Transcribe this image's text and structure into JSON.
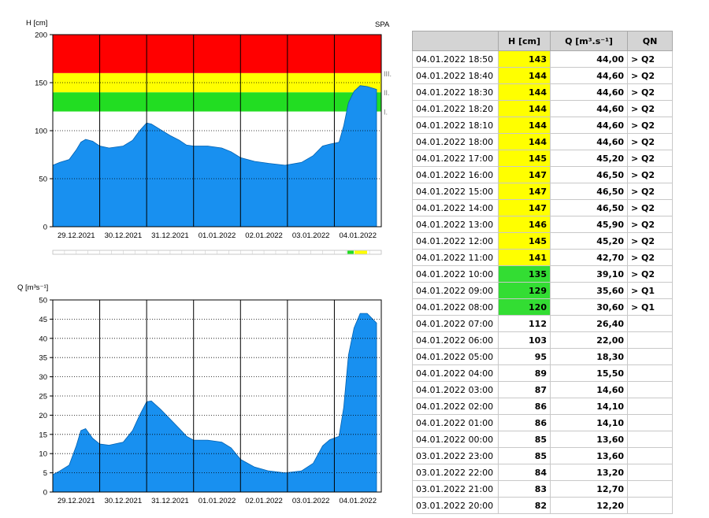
{
  "colors": {
    "fill": "#1890f0",
    "red": "#ff0000",
    "yellow": "#ffff00",
    "green": "#22dd22",
    "grid": "#000000"
  },
  "chart_data": [
    {
      "type": "area",
      "ylabel": "H [cm]",
      "corner_label": "SPA",
      "ylim": [
        0,
        200
      ],
      "yticks": [
        0,
        50,
        100,
        150,
        200
      ],
      "x_categories": [
        "29.12.2021",
        "30.12.2021",
        "31.12.2021",
        "01.01.2022",
        "02.01.2022",
        "03.01.2022",
        "04.01.2022"
      ],
      "flood_bands": [
        {
          "label": "I.",
          "from": 120,
          "to": 140,
          "color": "green"
        },
        {
          "label": "II.",
          "from": 140,
          "to": 160,
          "color": "yellow"
        },
        {
          "label": "III.",
          "from": 160,
          "to": 200,
          "color": "red"
        }
      ],
      "band_labels": [
        "I.",
        "II.",
        "III."
      ],
      "grid": "dotted horizontal, solid vertical at day boundaries",
      "series": [
        {
          "x": [
            0,
            0.15,
            0.35,
            0.5,
            0.6,
            0.7,
            0.85,
            1.0,
            1.2,
            1.5,
            1.7,
            1.85,
            2.0,
            2.1,
            2.3,
            2.5,
            2.7,
            2.85,
            3.0,
            3.3,
            3.6,
            3.8,
            4.0,
            4.3,
            4.6,
            4.95,
            5.3,
            5.55,
            5.75,
            5.9,
            6.1,
            6.2,
            6.3,
            6.42,
            6.55,
            6.7,
            6.9
          ],
          "y": [
            64,
            67,
            70,
            80,
            88,
            91,
            89,
            84,
            82,
            84,
            90,
            100,
            108,
            107,
            101,
            95,
            90,
            85,
            84,
            84,
            82,
            78,
            72,
            68,
            66,
            64,
            67,
            74,
            84,
            86,
            88,
            105,
            129,
            141,
            147,
            146,
            143
          ]
        }
      ]
    },
    {
      "type": "area",
      "ylabel": "Q [m³s⁻¹]",
      "ylim": [
        0,
        50
      ],
      "yticks": [
        0,
        5,
        10,
        15,
        20,
        25,
        30,
        35,
        40,
        45,
        50
      ],
      "x_categories": [
        "29.12.2021",
        "30.12.2021",
        "31.12.2021",
        "01.01.2022",
        "02.01.2022",
        "03.01.2022",
        "04.01.2022"
      ],
      "grid": "dotted horizontal, solid vertical at day boundaries",
      "series": [
        {
          "x": [
            0,
            0.15,
            0.35,
            0.5,
            0.6,
            0.7,
            0.85,
            1.0,
            1.2,
            1.5,
            1.7,
            1.85,
            2.0,
            2.1,
            2.3,
            2.5,
            2.7,
            2.85,
            3.0,
            3.3,
            3.6,
            3.8,
            4.0,
            4.3,
            4.6,
            4.95,
            5.3,
            5.55,
            5.75,
            5.9,
            6.1,
            6.2,
            6.3,
            6.42,
            6.55,
            6.7,
            6.9
          ],
          "y": [
            4.5,
            5.5,
            7,
            12,
            16,
            16.5,
            14,
            12.5,
            12.2,
            13,
            16,
            20,
            23.5,
            23.7,
            21.5,
            19,
            16.5,
            14.5,
            13.5,
            13.5,
            13,
            11.5,
            8.5,
            6.5,
            5.5,
            5,
            5.5,
            7.5,
            12,
            13.6,
            14.5,
            22,
            35.6,
            42.7,
            46.5,
            46.5,
            44
          ]
        }
      ]
    }
  ],
  "table": {
    "headers": [
      "",
      "H [cm]",
      "Q [m³.s⁻¹]",
      "QN"
    ],
    "rows": [
      {
        "time": "04.01.2022 18:50",
        "h": "143",
        "q": "44,00",
        "qn": "> Q2",
        "level": "yellow"
      },
      {
        "time": "04.01.2022 18:40",
        "h": "144",
        "q": "44,60",
        "qn": "> Q2",
        "level": "yellow"
      },
      {
        "time": "04.01.2022 18:30",
        "h": "144",
        "q": "44,60",
        "qn": "> Q2",
        "level": "yellow"
      },
      {
        "time": "04.01.2022 18:20",
        "h": "144",
        "q": "44,60",
        "qn": "> Q2",
        "level": "yellow"
      },
      {
        "time": "04.01.2022 18:10",
        "h": "144",
        "q": "44,60",
        "qn": "> Q2",
        "level": "yellow"
      },
      {
        "time": "04.01.2022 18:00",
        "h": "144",
        "q": "44,60",
        "qn": "> Q2",
        "level": "yellow"
      },
      {
        "time": "04.01.2022 17:00",
        "h": "145",
        "q": "45,20",
        "qn": "> Q2",
        "level": "yellow"
      },
      {
        "time": "04.01.2022 16:00",
        "h": "147",
        "q": "46,50",
        "qn": "> Q2",
        "level": "yellow"
      },
      {
        "time": "04.01.2022 15:00",
        "h": "147",
        "q": "46,50",
        "qn": "> Q2",
        "level": "yellow"
      },
      {
        "time": "04.01.2022 14:00",
        "h": "147",
        "q": "46,50",
        "qn": "> Q2",
        "level": "yellow"
      },
      {
        "time": "04.01.2022 13:00",
        "h": "146",
        "q": "45,90",
        "qn": "> Q2",
        "level": "yellow"
      },
      {
        "time": "04.01.2022 12:00",
        "h": "145",
        "q": "45,20",
        "qn": "> Q2",
        "level": "yellow"
      },
      {
        "time": "04.01.2022 11:00",
        "h": "141",
        "q": "42,70",
        "qn": "> Q2",
        "level": "yellow"
      },
      {
        "time": "04.01.2022 10:00",
        "h": "135",
        "q": "39,10",
        "qn": "> Q2",
        "level": "green"
      },
      {
        "time": "04.01.2022 09:00",
        "h": "129",
        "q": "35,60",
        "qn": "> Q1",
        "level": "green"
      },
      {
        "time": "04.01.2022 08:00",
        "h": "120",
        "q": "30,60",
        "qn": "> Q1",
        "level": "green"
      },
      {
        "time": "04.01.2022 07:00",
        "h": "112",
        "q": "26,40",
        "qn": "",
        "level": "none"
      },
      {
        "time": "04.01.2022 06:00",
        "h": "103",
        "q": "22,00",
        "qn": "",
        "level": "none"
      },
      {
        "time": "04.01.2022 05:00",
        "h": "95",
        "q": "18,30",
        "qn": "",
        "level": "none"
      },
      {
        "time": "04.01.2022 04:00",
        "h": "89",
        "q": "15,50",
        "qn": "",
        "level": "none"
      },
      {
        "time": "04.01.2022 03:00",
        "h": "87",
        "q": "14,60",
        "qn": "",
        "level": "none"
      },
      {
        "time": "04.01.2022 02:00",
        "h": "86",
        "q": "14,10",
        "qn": "",
        "level": "none"
      },
      {
        "time": "04.01.2022 01:00",
        "h": "86",
        "q": "14,10",
        "qn": "",
        "level": "none"
      },
      {
        "time": "04.01.2022 00:00",
        "h": "85",
        "q": "13,60",
        "qn": "",
        "level": "none"
      },
      {
        "time": "03.01.2022 23:00",
        "h": "85",
        "q": "13,60",
        "qn": "",
        "level": "none"
      },
      {
        "time": "03.01.2022 22:00",
        "h": "84",
        "q": "13,20",
        "qn": "",
        "level": "none"
      },
      {
        "time": "03.01.2022 21:00",
        "h": "83",
        "q": "12,70",
        "qn": "",
        "level": "none"
      },
      {
        "time": "03.01.2022 20:00",
        "h": "82",
        "q": "12,20",
        "qn": "",
        "level": "none"
      }
    ]
  }
}
